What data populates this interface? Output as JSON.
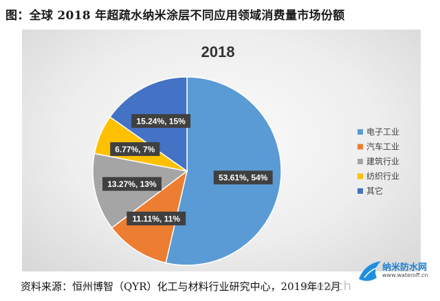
{
  "figure_title": "图：全球 2018 年超疏水纳米涂层不同应用领域消费量市场份额",
  "source_note": "资料来源：恒州博智（QYR）化工与材料行业研究中心，2019年12月",
  "watermark": {
    "text": "esearch"
  },
  "logo": {
    "name": "纳米防水网",
    "url": "www.wateroff.cn"
  },
  "colors": {
    "electronics": "#5b9bd5",
    "automotive": "#ed7d31",
    "construction": "#a5a5a5",
    "textile": "#ffc000",
    "other": "#4472c4"
  },
  "chart_data": {
    "type": "pie",
    "title": "2018",
    "start_angle_deg": 0,
    "direction": "clockwise",
    "legend_position": "right",
    "slices": [
      {
        "key": "electronics",
        "label": "电子工业",
        "value": 53.61,
        "data_label": "53.61%, 54%"
      },
      {
        "key": "automotive",
        "label": "汽车工业",
        "value": 11.11,
        "data_label": "11.11%, 11%"
      },
      {
        "key": "construction",
        "label": "建筑行业",
        "value": 13.27,
        "data_label": "13.27%, 13%"
      },
      {
        "key": "textile",
        "label": "纺织行业",
        "value": 6.77,
        "data_label": "6.77%, 7%"
      },
      {
        "key": "other",
        "label": "其它",
        "value": 15.24,
        "data_label": "15.24%, 15%"
      }
    ]
  }
}
